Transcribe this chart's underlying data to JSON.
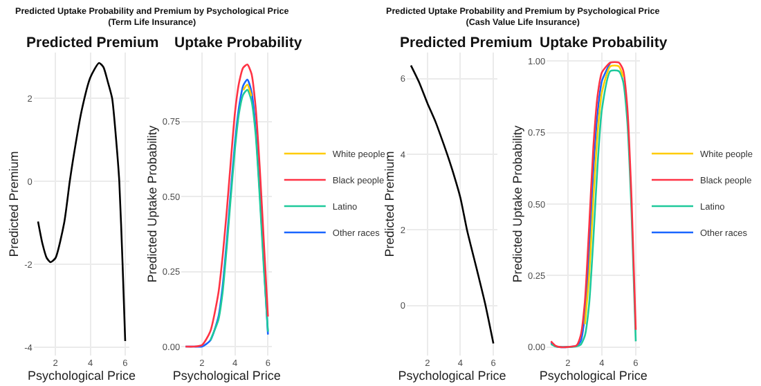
{
  "chart_data": [
    {
      "type": "line",
      "title": "Predicted Uptake Probability and Premium by Psychological Price\n(Term Life Insurance)",
      "subtitle": "Predicted Premium",
      "xlabel": "Psychological Price",
      "ylabel": "Predicted Premium",
      "xlim": [
        0.75,
        6.25
      ],
      "ylim": [
        -4.2,
        3.1
      ],
      "xticks": [
        2,
        4,
        6
      ],
      "yticks": [
        -4,
        -2,
        0,
        2
      ],
      "grid": true,
      "legend": false,
      "series": [
        {
          "color": "#000000",
          "x": [
            1,
            1.25,
            1.5,
            1.72,
            2,
            2.5,
            2.82,
            3,
            3.5,
            4,
            4.5,
            4.75,
            5,
            5.25,
            5.5,
            5.66,
            5.85,
            6
          ],
          "values": [
            -0.97,
            -1.5,
            -1.85,
            -1.95,
            -1.85,
            -1.0,
            0,
            0.5,
            1.7,
            2.5,
            2.85,
            2.75,
            2.4,
            2.0,
            0.9,
            0,
            -2.0,
            -3.85
          ]
        }
      ]
    },
    {
      "type": "line",
      "title": "Uptake Probability",
      "xlabel": "Psychological Price",
      "ylabel": "Predicted Uptake Probability",
      "xlim": [
        0.75,
        6.25
      ],
      "ylim": [
        -0.03,
        0.98
      ],
      "xticks": [
        2,
        4,
        6
      ],
      "yticks": [
        {
          "value": 0,
          "label": "0.00"
        },
        {
          "value": 0.25,
          "label": "0.25"
        },
        {
          "value": 0.5,
          "label": "0.50"
        },
        {
          "value": 0.75,
          "label": "0.75"
        }
      ],
      "grid": true,
      "legend": "right",
      "x": [
        1,
        1.5,
        2,
        2.5,
        3,
        3.25,
        3.5,
        3.75,
        4,
        4.25,
        4.5,
        4.75,
        5,
        5.25,
        5.5,
        5.75,
        6
      ],
      "series": [
        {
          "name": "White people",
          "color": "#ffcc00",
          "values": [
            null,
            null,
            null,
            null,
            null,
            null,
            null,
            null,
            null,
            null,
            0.855,
            0.873,
            0.835,
            null,
            null,
            null,
            null
          ]
        },
        {
          "name": "Black people",
          "color": "#ff3344",
          "values": [
            0,
            0,
            0.005,
            0.05,
            0.18,
            0.3,
            0.45,
            0.62,
            0.78,
            0.88,
            0.93,
            0.94,
            0.91,
            0.8,
            0.6,
            0.35,
            0.1
          ]
        },
        {
          "name": "Latino",
          "color": "#1ec99b",
          "values": [
            null,
            null,
            null,
            0.02,
            0.09,
            0.18,
            0.33,
            0.5,
            0.66,
            0.78,
            0.84,
            0.856,
            0.82,
            0.71,
            0.5,
            0.26,
            0.05
          ]
        },
        {
          "name": "Other races",
          "color": "#1a66ff",
          "values": [
            0,
            0,
            0,
            0.02,
            0.1,
            0.2,
            0.35,
            0.52,
            0.68,
            0.8,
            0.87,
            0.89,
            0.85,
            0.73,
            0.52,
            0.28,
            0.04
          ]
        }
      ]
    },
    {
      "type": "line",
      "title": "Predicted Uptake Probability and Premium by Psychological Price\n(Cash Value Life Insurance)",
      "subtitle": "Predicted Premium",
      "xlabel": "Psychological Price",
      "ylabel": "Predicted Premium",
      "xlim": [
        0.75,
        6.25
      ],
      "ylim": [
        -1.32,
        6.69
      ],
      "xticks": [
        2,
        4,
        6
      ],
      "yticks": [
        0,
        2,
        4,
        6
      ],
      "grid": true,
      "legend": false,
      "series": [
        {
          "color": "#000000",
          "x": [
            1,
            1.5,
            2,
            2.5,
            3,
            3.2,
            3.5,
            4,
            4.4,
            5,
            5.5,
            6
          ],
          "values": [
            6.35,
            5.9,
            5.35,
            4.85,
            4.25,
            4.0,
            3.6,
            2.85,
            2.0,
            0.95,
            0.05,
            -1.0
          ]
        }
      ]
    },
    {
      "type": "line",
      "title": "Uptake Probability",
      "xlabel": "Psychological Price",
      "ylabel": "Predicted Uptake Probability",
      "xlim": [
        0.75,
        6.25
      ],
      "ylim": [
        -0.03,
        1.03
      ],
      "xticks": [
        2,
        4,
        6
      ],
      "yticks": [
        {
          "value": 0,
          "label": "0.00"
        },
        {
          "value": 0.25,
          "label": "0.25"
        },
        {
          "value": 0.5,
          "label": "0.50"
        },
        {
          "value": 0.75,
          "label": "0.75"
        },
        {
          "value": 1,
          "label": "1.00"
        }
      ],
      "grid": true,
      "legend": "right",
      "x": [
        1,
        1.25,
        1.5,
        2,
        2.5,
        2.75,
        3,
        3.25,
        3.5,
        3.75,
        4,
        4.5,
        5,
        5.25,
        5.5,
        5.75,
        6
      ],
      "series": [
        {
          "name": "White people",
          "color": "#ffcc00",
          "values": [
            null,
            null,
            null,
            null,
            null,
            null,
            0.08,
            0.25,
            0.52,
            0.75,
            0.89,
            0.982,
            0.982,
            0.945,
            null,
            null,
            null
          ]
        },
        {
          "name": "Black people",
          "color": "#ff3344",
          "values": [
            0.02,
            0.005,
            0,
            0,
            0.005,
            0.04,
            0.16,
            0.42,
            0.7,
            0.88,
            0.96,
            0.995,
            0.995,
            0.97,
            0.84,
            0.52,
            0.06
          ]
        },
        {
          "name": "Latino",
          "color": "#1ec99b",
          "values": [
            0.01,
            0.002,
            0,
            0,
            0.002,
            0.008,
            0.04,
            0.15,
            0.38,
            0.64,
            0.83,
            0.965,
            0.965,
            0.93,
            0.79,
            0.47,
            0.02
          ]
        },
        {
          "name": "Other races",
          "color": "#1a66ff",
          "values": [
            0.015,
            0.003,
            0,
            0,
            0.004,
            0.02,
            0.11,
            0.33,
            0.62,
            0.82,
            0.93,
            0.995,
            null,
            null,
            null,
            null,
            null
          ]
        }
      ]
    }
  ]
}
